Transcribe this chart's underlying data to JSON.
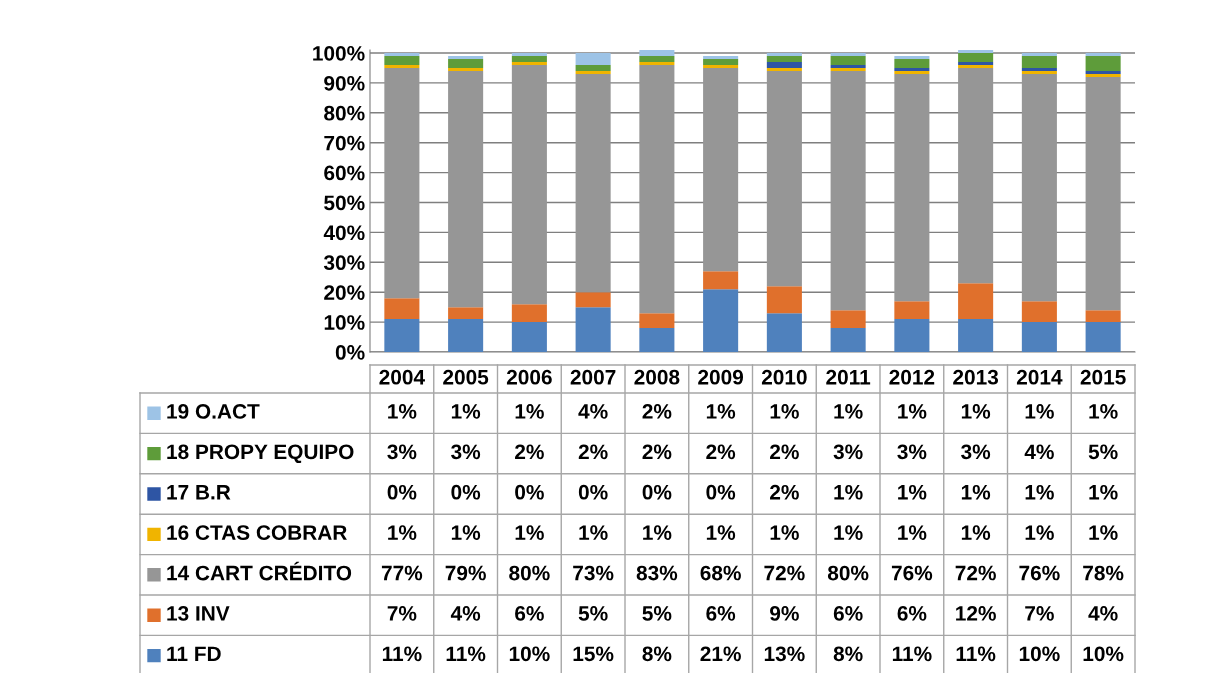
{
  "chart_data": {
    "type": "bar",
    "stacked": true,
    "grid": "y",
    "legend": "bottom left",
    "categories": [
      "2004",
      "2005",
      "2006",
      "2007",
      "2008",
      "2009",
      "2010",
      "2011",
      "2012",
      "2013",
      "2014",
      "2015"
    ],
    "ylim": [
      0,
      101
    ],
    "yticks": [
      {
        "value": 0,
        "label": "0%"
      },
      {
        "value": 10,
        "label": "10%"
      },
      {
        "value": 20,
        "label": "20%"
      },
      {
        "value": 30,
        "label": "30%"
      },
      {
        "value": 40,
        "label": "40%"
      },
      {
        "value": 50,
        "label": "50%"
      },
      {
        "value": 60,
        "label": "60%"
      },
      {
        "value": 70,
        "label": "70%"
      },
      {
        "value": 80,
        "label": "80%"
      },
      {
        "value": 90,
        "label": "90%"
      },
      {
        "value": 100,
        "label": "100%"
      }
    ],
    "series": [
      {
        "name": "11 FD",
        "color": "#4f81bd",
        "values": [
          11,
          11,
          10,
          15,
          8,
          21,
          13,
          8,
          11,
          11,
          10,
          10
        ],
        "value_labels": [
          "11%",
          "11%",
          "10%",
          "15%",
          "8%",
          "21%",
          "13%",
          "8%",
          "11%",
          "11%",
          "10%",
          "10%"
        ]
      },
      {
        "name": "13 INV",
        "color": "#e0702c",
        "values": [
          7,
          4,
          6,
          5,
          5,
          6,
          9,
          6,
          6,
          12,
          7,
          4
        ],
        "value_labels": [
          "7%",
          "4%",
          "6%",
          "5%",
          "5%",
          "6%",
          "9%",
          "6%",
          "6%",
          "12%",
          "7%",
          "4%"
        ]
      },
      {
        "name": "14 CART CRÉDITO",
        "color": "#969696",
        "values": [
          77,
          79,
          80,
          73,
          83,
          68,
          72,
          80,
          76,
          72,
          76,
          78
        ],
        "value_labels": [
          "77%",
          "79%",
          "80%",
          "73%",
          "83%",
          "68%",
          "72%",
          "80%",
          "76%",
          "72%",
          "76%",
          "78%"
        ]
      },
      {
        "name": "16 CTAS COBRAR",
        "color": "#f0b400",
        "values": [
          1,
          1,
          1,
          1,
          1,
          1,
          1,
          1,
          1,
          1,
          1,
          1
        ],
        "value_labels": [
          "1%",
          "1%",
          "1%",
          "1%",
          "1%",
          "1%",
          "1%",
          "1%",
          "1%",
          "1%",
          "1%",
          "1%"
        ]
      },
      {
        "name": "17 B.R",
        "color": "#2e55a4",
        "values": [
          0,
          0,
          0,
          0,
          0,
          0,
          2,
          1,
          1,
          1,
          1,
          1
        ],
        "value_labels": [
          "0%",
          "0%",
          "0%",
          "0%",
          "0%",
          "0%",
          "2%",
          "1%",
          "1%",
          "1%",
          "1%",
          "1%"
        ]
      },
      {
        "name": "18 PROPY EQUIPO",
        "color": "#5e9c3a",
        "values": [
          3,
          3,
          2,
          2,
          2,
          2,
          2,
          3,
          3,
          3,
          4,
          5
        ],
        "value_labels": [
          "3%",
          "3%",
          "2%",
          "2%",
          "2%",
          "2%",
          "2%",
          "3%",
          "3%",
          "3%",
          "4%",
          "5%"
        ]
      },
      {
        "name": "19 O.ACT",
        "color": "#9dc3e6",
        "values": [
          1,
          1,
          1,
          4,
          2,
          1,
          1,
          1,
          1,
          1,
          1,
          1
        ],
        "value_labels": [
          "1%",
          "1%",
          "1%",
          "4%",
          "2%",
          "1%",
          "1%",
          "1%",
          "1%",
          "1%",
          "1%",
          "1%"
        ]
      }
    ]
  }
}
